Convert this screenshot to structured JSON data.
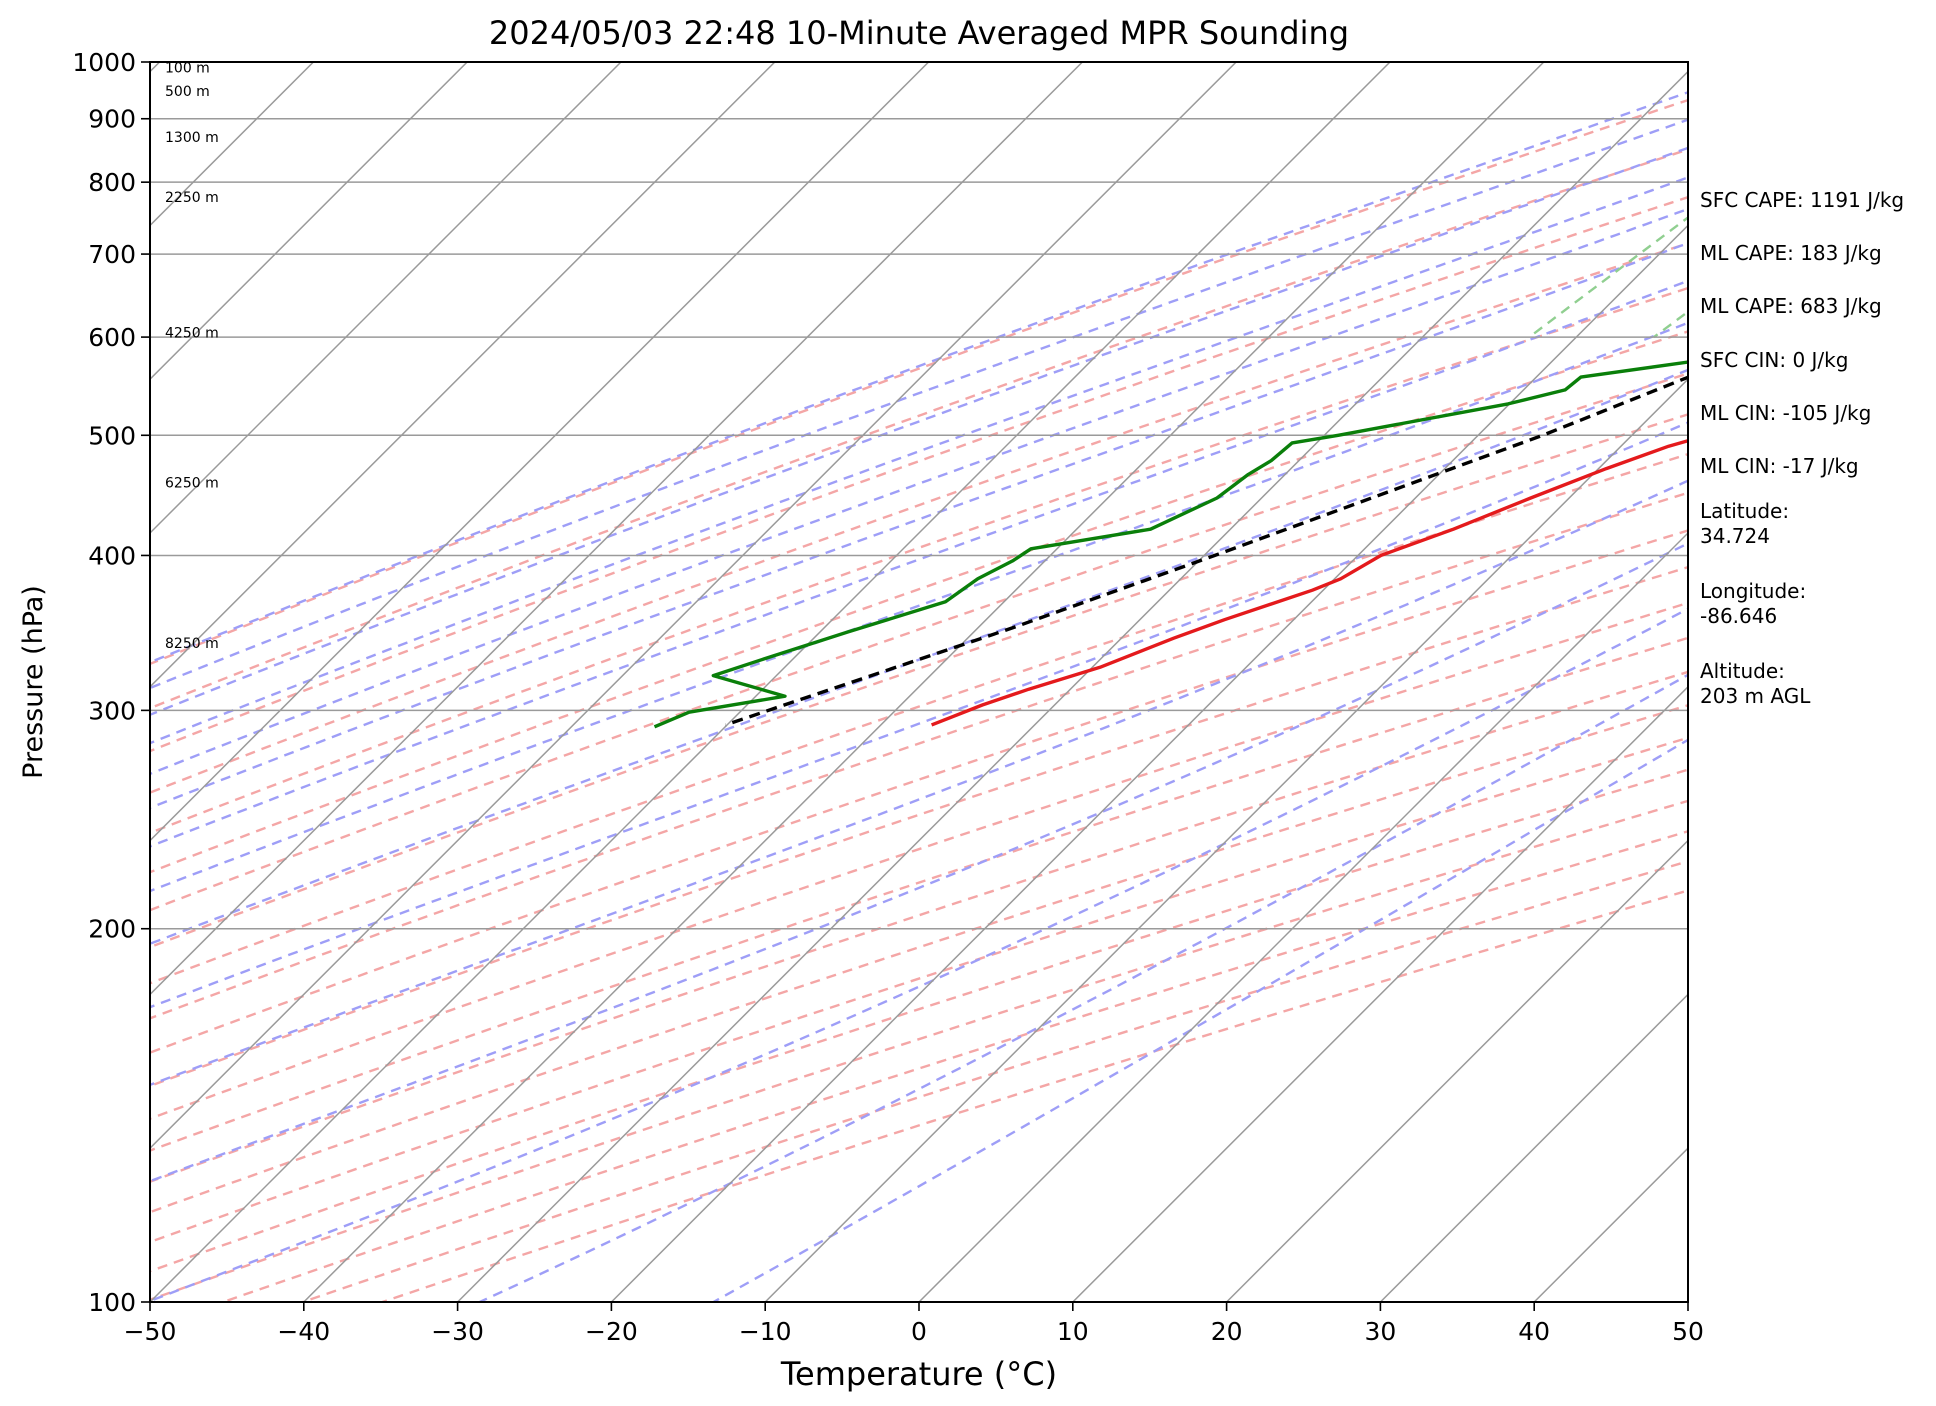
{
  "chart_data": {
    "type": "line",
    "title": "2024/05/03 22:48 10-Minute Averaged MPR Sounding",
    "xlabel": "Temperature (°C)",
    "ylabel": "Pressure (hPa)",
    "xlim": [
      -50,
      50
    ],
    "ylim": [
      1000,
      100
    ],
    "y_scale": "log",
    "grid": true,
    "skew": "isotherms slanted (Skew-T log-P)",
    "x_ticks": [
      "−50",
      "−40",
      "−30",
      "−20",
      "−10",
      "0",
      "10",
      "20",
      "30",
      "40",
      "50"
    ],
    "x_tick_values": [
      -50,
      -40,
      -30,
      -20,
      -10,
      0,
      10,
      20,
      30,
      40,
      50
    ],
    "y_ticks": [
      "100",
      "200",
      "300",
      "400",
      "500",
      "600",
      "700",
      "800",
      "900",
      "1000"
    ],
    "y_tick_values": [
      100,
      200,
      300,
      400,
      500,
      600,
      700,
      800,
      900,
      1000
    ],
    "height_labels": [
      {
        "text": "8250 m",
        "pressure": 340
      },
      {
        "text": "6250 m",
        "pressure": 458
      },
      {
        "text": "4250 m",
        "pressure": 605
      },
      {
        "text": "2250 m",
        "pressure": 778
      },
      {
        "text": "1300 m",
        "pressure": 870
      },
      {
        "text": "500 m",
        "pressure": 948
      },
      {
        "text": "100 m",
        "pressure": 990
      }
    ],
    "series": [
      {
        "kind": "temperature",
        "color": "#e41a1c",
        "points": [
          {
            "p": 990,
            "t": 22.3
          },
          {
            "p": 975,
            "t": 20.5
          },
          {
            "p": 958,
            "t": 3.2
          },
          {
            "p": 950,
            "t": 3.9
          },
          {
            "p": 900,
            "t": 5.3
          },
          {
            "p": 850,
            "t": 6.4
          },
          {
            "p": 800,
            "t": 7.3
          },
          {
            "p": 770,
            "t": 7.9
          },
          {
            "p": 740,
            "t": 8.9
          },
          {
            "p": 700,
            "t": 9.2
          },
          {
            "p": 680,
            "t": 8.5
          },
          {
            "p": 660,
            "t": 6.6
          },
          {
            "p": 640,
            "t": 5.1
          },
          {
            "p": 610,
            "t": 3.6
          },
          {
            "p": 600,
            "t": 2.5
          },
          {
            "p": 575,
            "t": 1.2
          },
          {
            "p": 555,
            "t": -0.5
          },
          {
            "p": 520,
            "t": -2.6
          },
          {
            "p": 505,
            "t": -4.2
          },
          {
            "p": 490,
            "t": -6.9
          },
          {
            "p": 470,
            "t": -9.5
          },
          {
            "p": 445,
            "t": -12.5
          },
          {
            "p": 420,
            "t": -15.5
          },
          {
            "p": 400,
            "t": -18.5
          },
          {
            "p": 383,
            "t": -19.6
          },
          {
            "p": 375,
            "t": -20.7
          },
          {
            "p": 355,
            "t": -24.5
          },
          {
            "p": 343,
            "t": -26.6
          },
          {
            "p": 325,
            "t": -29.5
          },
          {
            "p": 312,
            "t": -32.7
          },
          {
            "p": 303,
            "t": -34.7
          },
          {
            "p": 292,
            "t": -36.7
          }
        ]
      },
      {
        "kind": "dewpoint",
        "color": "#0a7f0a",
        "points": [
          {
            "p": 990,
            "t": 19.3
          },
          {
            "p": 980,
            "t": 4.7
          },
          {
            "p": 972,
            "t": 3.6
          },
          {
            "p": 962,
            "t": 2.8
          },
          {
            "p": 958,
            "t": 2.1
          },
          {
            "p": 955,
            "t": -0.5
          },
          {
            "p": 945,
            "t": -6.3
          },
          {
            "p": 930,
            "t": -9.6
          },
          {
            "p": 915,
            "t": -10.8
          },
          {
            "p": 900,
            "t": -11.2
          },
          {
            "p": 890,
            "t": -11.2
          },
          {
            "p": 880,
            "t": -10.5
          },
          {
            "p": 870,
            "t": -8.9
          },
          {
            "p": 860,
            "t": -8.2
          },
          {
            "p": 850,
            "t": -6.8
          },
          {
            "p": 820,
            "t": -0.6
          },
          {
            "p": 800,
            "t": 2.9
          },
          {
            "p": 785,
            "t": 4.4
          },
          {
            "p": 770,
            "t": 7.2
          },
          {
            "p": 750,
            "t": 8.4
          },
          {
            "p": 735,
            "t": 10.4
          },
          {
            "p": 710,
            "t": 10.9
          },
          {
            "p": 680,
            "t": 11.5
          },
          {
            "p": 663,
            "t": 12.6
          },
          {
            "p": 640,
            "t": 9.8
          },
          {
            "p": 620,
            "t": 8.2
          },
          {
            "p": 605,
            "t": 8.4
          },
          {
            "p": 590,
            "t": -0.5
          },
          {
            "p": 575,
            "t": -10.3
          },
          {
            "p": 557,
            "t": -17.1
          },
          {
            "p": 544,
            "t": -17.3
          },
          {
            "p": 530,
            "t": -20.1
          },
          {
            "p": 500,
            "t": -29.1
          },
          {
            "p": 493,
            "t": -31.6
          },
          {
            "p": 477,
            "t": -31.8
          },
          {
            "p": 465,
            "t": -32.4
          },
          {
            "p": 445,
            "t": -32.9
          },
          {
            "p": 420,
            "t": -35.2
          },
          {
            "p": 405,
            "t": -41.7
          },
          {
            "p": 396,
            "t": -42.1
          },
          {
            "p": 383,
            "t": -43.2
          },
          {
            "p": 367,
            "t": -43.8
          },
          {
            "p": 347,
            "t": -48.2
          },
          {
            "p": 330,
            "t": -51.9
          },
          {
            "p": 320,
            "t": -54.1
          },
          {
            "p": 308,
            "t": -48.1
          },
          {
            "p": 299,
            "t": -53.3
          },
          {
            "p": 291,
            "t": -54.6
          }
        ]
      },
      {
        "kind": "parcel",
        "color": "#000000",
        "style": "dashed",
        "points": [
          {
            "p": 990,
            "t": 22.3
          },
          {
            "p": 960,
            "t": 19.8
          },
          {
            "p": 900,
            "t": 14.3
          },
          {
            "p": 850,
            "t": 11.5
          },
          {
            "p": 800,
            "t": 8.5
          },
          {
            "p": 700,
            "t": 1.7
          },
          {
            "p": 600,
            "t": -6.2
          },
          {
            "p": 500,
            "t": -15.8
          },
          {
            "p": 400,
            "t": -29.3
          },
          {
            "p": 350,
            "t": -37.7
          },
          {
            "p": 292,
            "t": -50.1
          }
        ]
      }
    ]
  },
  "stats": [
    "SFC CAPE: 1191 J/kg",
    "ML CAPE: 183 J/kg",
    "ML CAPE: 683 J/kg",
    "SFC CIN: 0 J/kg",
    "ML CIN: -105 J/kg",
    "ML CIN: -17 J/kg",
    "Latitude:\n34.724",
    "Longitude:\n-86.646",
    "Altitude:\n203 m AGL"
  ],
  "colors": {
    "dry_adiabat": "#f4a6a6",
    "moist_adiabat": "#9e9ef7",
    "mixing_ratio": "#90cf90",
    "isotherm": "#9a9a9a",
    "isobar": "#9a9a9a"
  }
}
